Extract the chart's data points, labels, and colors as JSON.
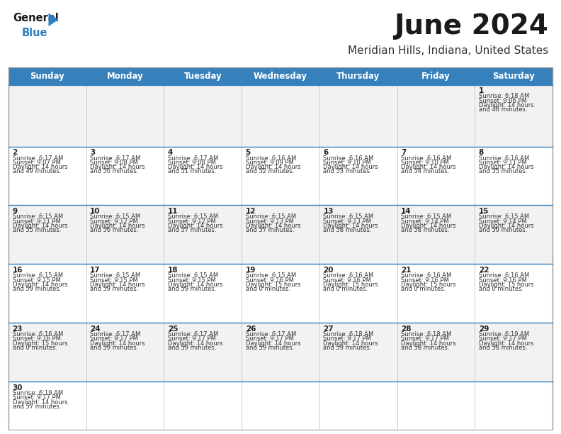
{
  "title": "June 2024",
  "subtitle": "Meridian Hills, Indiana, United States",
  "header_bg": "#3680BC",
  "header_text": "#FFFFFF",
  "day_names": [
    "Sunday",
    "Monday",
    "Tuesday",
    "Wednesday",
    "Thursday",
    "Friday",
    "Saturday"
  ],
  "cell_bg_white": "#FFFFFF",
  "cell_bg_gray": "#F2F2F2",
  "date_color": "#222222",
  "info_color": "#333333",
  "title_color": "#1a1a1a",
  "subtitle_color": "#333333",
  "logo_black": "#1a1a1a",
  "logo_blue": "#2E7FC1",
  "cal_data": [
    [
      {
        "day": "",
        "sunrise": "",
        "sunset": "",
        "daylight": ""
      },
      {
        "day": "",
        "sunrise": "",
        "sunset": "",
        "daylight": ""
      },
      {
        "day": "",
        "sunrise": "",
        "sunset": "",
        "daylight": ""
      },
      {
        "day": "",
        "sunrise": "",
        "sunset": "",
        "daylight": ""
      },
      {
        "day": "",
        "sunrise": "",
        "sunset": "",
        "daylight": ""
      },
      {
        "day": "",
        "sunrise": "",
        "sunset": "",
        "daylight": ""
      },
      {
        "day": "1",
        "sunrise": "6:18 AM",
        "sunset": "9:06 PM",
        "daylight": "14 hours and 48 minutes."
      }
    ],
    [
      {
        "day": "2",
        "sunrise": "6:17 AM",
        "sunset": "9:07 PM",
        "daylight": "14 hours and 49 minutes."
      },
      {
        "day": "3",
        "sunrise": "6:17 AM",
        "sunset": "9:08 PM",
        "daylight": "14 hours and 50 minutes."
      },
      {
        "day": "4",
        "sunrise": "6:17 AM",
        "sunset": "9:08 PM",
        "daylight": "14 hours and 51 minutes."
      },
      {
        "day": "5",
        "sunrise": "6:16 AM",
        "sunset": "9:09 PM",
        "daylight": "14 hours and 52 minutes."
      },
      {
        "day": "6",
        "sunrise": "6:16 AM",
        "sunset": "9:10 PM",
        "daylight": "14 hours and 53 minutes."
      },
      {
        "day": "7",
        "sunrise": "6:16 AM",
        "sunset": "9:10 PM",
        "daylight": "14 hours and 54 minutes."
      },
      {
        "day": "8",
        "sunrise": "6:16 AM",
        "sunset": "9:11 PM",
        "daylight": "14 hours and 55 minutes."
      }
    ],
    [
      {
        "day": "9",
        "sunrise": "6:15 AM",
        "sunset": "9:11 PM",
        "daylight": "14 hours and 55 minutes."
      },
      {
        "day": "10",
        "sunrise": "6:15 AM",
        "sunset": "9:12 PM",
        "daylight": "14 hours and 56 minutes."
      },
      {
        "day": "11",
        "sunrise": "6:15 AM",
        "sunset": "9:12 PM",
        "daylight": "14 hours and 57 minutes."
      },
      {
        "day": "12",
        "sunrise": "6:15 AM",
        "sunset": "9:13 PM",
        "daylight": "14 hours and 57 minutes."
      },
      {
        "day": "13",
        "sunrise": "6:15 AM",
        "sunset": "9:13 PM",
        "daylight": "14 hours and 58 minutes."
      },
      {
        "day": "14",
        "sunrise": "6:15 AM",
        "sunset": "9:14 PM",
        "daylight": "14 hours and 58 minutes."
      },
      {
        "day": "15",
        "sunrise": "6:15 AM",
        "sunset": "9:14 PM",
        "daylight": "14 hours and 59 minutes."
      }
    ],
    [
      {
        "day": "16",
        "sunrise": "6:15 AM",
        "sunset": "9:15 PM",
        "daylight": "14 hours and 59 minutes."
      },
      {
        "day": "17",
        "sunrise": "6:15 AM",
        "sunset": "9:15 PM",
        "daylight": "14 hours and 59 minutes."
      },
      {
        "day": "18",
        "sunrise": "6:15 AM",
        "sunset": "9:15 PM",
        "daylight": "14 hours and 59 minutes."
      },
      {
        "day": "19",
        "sunrise": "6:15 AM",
        "sunset": "9:16 PM",
        "daylight": "15 hours and 0 minutes."
      },
      {
        "day": "20",
        "sunrise": "6:16 AM",
        "sunset": "9:16 PM",
        "daylight": "15 hours and 0 minutes."
      },
      {
        "day": "21",
        "sunrise": "6:16 AM",
        "sunset": "9:16 PM",
        "daylight": "15 hours and 0 minutes."
      },
      {
        "day": "22",
        "sunrise": "6:16 AM",
        "sunset": "9:16 PM",
        "daylight": "15 hours and 0 minutes."
      }
    ],
    [
      {
        "day": "23",
        "sunrise": "6:16 AM",
        "sunset": "9:16 PM",
        "daylight": "15 hours and 0 minutes."
      },
      {
        "day": "24",
        "sunrise": "6:17 AM",
        "sunset": "9:17 PM",
        "daylight": "14 hours and 59 minutes."
      },
      {
        "day": "25",
        "sunrise": "6:17 AM",
        "sunset": "9:17 PM",
        "daylight": "14 hours and 59 minutes."
      },
      {
        "day": "26",
        "sunrise": "6:17 AM",
        "sunset": "9:17 PM",
        "daylight": "14 hours and 59 minutes."
      },
      {
        "day": "27",
        "sunrise": "6:18 AM",
        "sunset": "9:17 PM",
        "daylight": "14 hours and 59 minutes."
      },
      {
        "day": "28",
        "sunrise": "6:18 AM",
        "sunset": "9:17 PM",
        "daylight": "14 hours and 58 minutes."
      },
      {
        "day": "29",
        "sunrise": "6:19 AM",
        "sunset": "9:17 PM",
        "daylight": "14 hours and 58 minutes."
      }
    ],
    [
      {
        "day": "30",
        "sunrise": "6:19 AM",
        "sunset": "9:17 PM",
        "daylight": "14 hours and 57 minutes."
      },
      {
        "day": "",
        "sunrise": "",
        "sunset": "",
        "daylight": ""
      },
      {
        "day": "",
        "sunrise": "",
        "sunset": "",
        "daylight": ""
      },
      {
        "day": "",
        "sunrise": "",
        "sunset": "",
        "daylight": ""
      },
      {
        "day": "",
        "sunrise": "",
        "sunset": "",
        "daylight": ""
      },
      {
        "day": "",
        "sunrise": "",
        "sunset": "",
        "daylight": ""
      },
      {
        "day": "",
        "sunrise": "",
        "sunset": "",
        "daylight": ""
      }
    ]
  ]
}
